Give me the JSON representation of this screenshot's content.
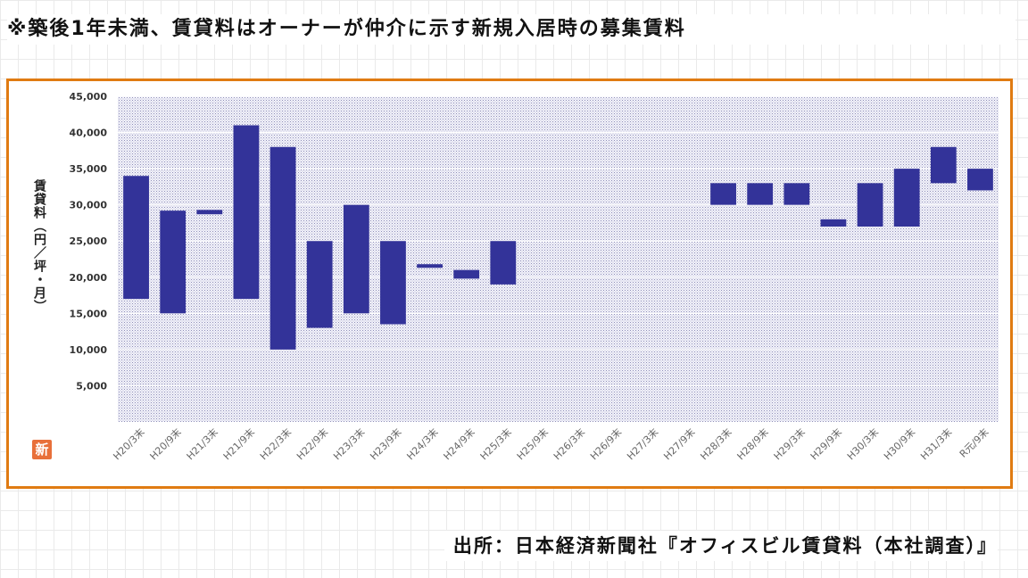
{
  "header": {
    "note": "※築後1年未満、賃貸料はオーナーが仲介に示す新規入居時の募集賃料"
  },
  "footer": {
    "source": "出所：日本経済新聞社『オフィスビル賃貸料（本社調査）』"
  },
  "stamp_text": "新",
  "chart_data": {
    "type": "bar",
    "subtype": "floating-range",
    "title": "",
    "xlabel": "",
    "ylabel": "賃貸料（円／坪・月）",
    "ylim": [
      0,
      45000
    ],
    "yticks": [
      5000,
      10000,
      15000,
      20000,
      25000,
      30000,
      35000,
      40000,
      45000
    ],
    "ytick_labels": [
      "5,000",
      "10,000",
      "15,000",
      "20,000",
      "25,000",
      "30,000",
      "35,000",
      "40,000",
      "45,000"
    ],
    "grid": true,
    "categories": [
      "H20/3末",
      "H20/9末",
      "H21/3末",
      "H21/9末",
      "H22/3末",
      "H22/9末",
      "H23/3末",
      "H23/9末",
      "H24/3末",
      "H24/9末",
      "H25/3末",
      "H25/9末",
      "H26/3末",
      "H26/9末",
      "H27/3末",
      "H27/9末",
      "H28/3末",
      "H28/9末",
      "H29/3末",
      "H29/9末",
      "H30/3末",
      "H30/9末",
      "H31/3末",
      "R元/9末"
    ],
    "series": [
      {
        "low": [
          17000,
          15000,
          28700,
          17000,
          10000,
          13000,
          15000,
          13500,
          21300,
          19800,
          19000,
          null,
          null,
          null,
          null,
          null,
          30000,
          30000,
          30000,
          27000,
          27000,
          27000,
          33000,
          32000
        ],
        "high": [
          34000,
          29200,
          29300,
          41000,
          38000,
          25000,
          30000,
          25000,
          21800,
          21000,
          25000,
          null,
          null,
          null,
          null,
          null,
          33000,
          33000,
          33000,
          28000,
          33000,
          35000,
          38000,
          35000
        ]
      }
    ],
    "colors": {
      "bar": "#333399",
      "plot_bg": "#f0f0f8",
      "dots": "#9999bb",
      "frame": "#e07b12"
    }
  }
}
